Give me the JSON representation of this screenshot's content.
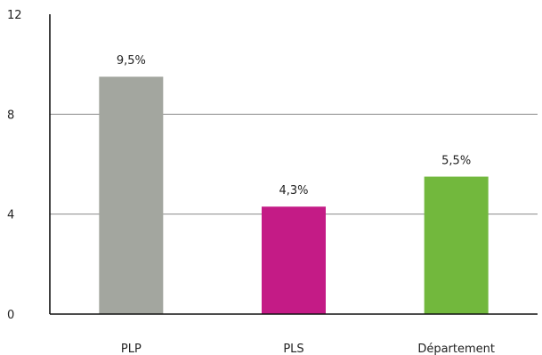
{
  "chart_data": {
    "type": "bar",
    "categories": [
      "PLP",
      "PLS",
      "Département"
    ],
    "values": [
      9.5,
      4.3,
      5.5
    ],
    "data_labels": [
      "9,5%",
      "4,3%",
      "5,5%"
    ],
    "colors": [
      "#a3a69f",
      "#c41b86",
      "#72b83d"
    ],
    "ylim": [
      0,
      12
    ],
    "yticks": [
      0,
      4,
      8,
      12
    ],
    "grid": true,
    "title": "",
    "xlabel": "",
    "ylabel": ""
  }
}
